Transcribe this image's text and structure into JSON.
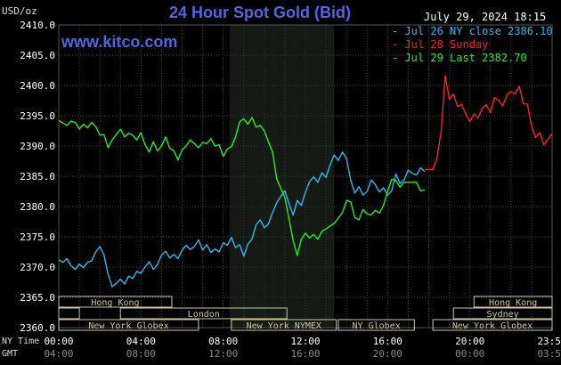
{
  "header": {
    "unit": "USD/oz",
    "title": "24 Hour Spot Gold (Bid)",
    "website": "www.kitco.com",
    "date": "July 29, 2024 18:15"
  },
  "legend": [
    {
      "label": "- Jul 26 NY close 2386.10",
      "color": "#2bb8ef"
    },
    {
      "label": "- Jul 28 Sunday",
      "color": "#ff2020"
    },
    {
      "label": "- Jul 29 Last 2382.70",
      "color": "#22ee22"
    }
  ],
  "colors": {
    "grid": "#3a3a3a",
    "session_highlight": "#151a15",
    "axis_text": "#ffffff",
    "gmt_text": "#8a8a8a",
    "session_box": "#cfc89a"
  },
  "footer": {
    "ny_label": "NY Time",
    "gmt_label": "GMT"
  },
  "chart_data": {
    "type": "line",
    "title": "24 Hour Spot Gold (Bid)",
    "ylabel": "USD/oz",
    "ylim": [
      2360.0,
      2410.0
    ],
    "yticks": [
      "2410.0",
      "2405.0",
      "2400.0",
      "2395.0",
      "2390.0",
      "2385.0",
      "2380.0",
      "2375.0",
      "2370.0",
      "2365.0",
      "2360.0"
    ],
    "xlim": [
      0,
      24
    ],
    "xticks_ny": [
      "00:00",
      "04:00",
      "08:00",
      "12:00",
      "16:00",
      "20:00",
      "23:59"
    ],
    "xticks_gmt": [
      "04:00",
      "08:00",
      "12:00",
      "16:00",
      "20:00",
      "00:00",
      "03:59"
    ],
    "highlight_hours": [
      8.3,
      13.4
    ],
    "sessions": [
      {
        "name": "Hong Kong",
        "start": 0,
        "end": 5.5
      },
      {
        "name": "Hong Kong",
        "start": 20.2,
        "end": 24
      },
      {
        "name": "London",
        "start": 0,
        "end": 1,
        "row": 1
      },
      {
        "name": "London",
        "start": 3,
        "end": 11.1
      },
      {
        "name": "Sydney",
        "start": 19.2,
        "end": 24
      },
      {
        "name": "New York Globex",
        "start": 0,
        "end": 6.8
      },
      {
        "name": "New York NYMEX",
        "start": 8.4,
        "end": 13.5
      },
      {
        "name": "NY Globex",
        "start": 13.6,
        "end": 17.3
      },
      {
        "name": "New York Globex",
        "start": 18.2,
        "end": 24
      }
    ],
    "series": [
      {
        "name": "Jul 26 NY close 2386.10",
        "color": "#2bb8ef",
        "x": [
          0.0,
          0.2,
          0.4,
          0.6,
          0.8,
          1.0,
          1.2,
          1.4,
          1.6,
          1.8,
          2.0,
          2.2,
          2.4,
          2.6,
          2.8,
          3.0,
          3.2,
          3.4,
          3.6,
          3.8,
          4.0,
          4.2,
          4.4,
          4.6,
          4.8,
          5.0,
          5.2,
          5.4,
          5.6,
          5.8,
          6.0,
          6.2,
          6.4,
          6.6,
          6.8,
          7.0,
          7.2,
          7.4,
          7.6,
          7.8,
          8.0,
          8.2,
          8.4,
          8.6,
          8.8,
          9.0,
          9.2,
          9.4,
          9.6,
          9.8,
          10.0,
          10.2,
          10.4,
          10.6,
          10.8,
          11.0,
          11.2,
          11.4,
          11.6,
          11.8,
          12.0,
          12.2,
          12.4,
          12.6,
          12.8,
          13.0,
          13.2,
          13.4,
          13.6,
          13.8,
          14.0,
          14.2,
          14.4,
          14.6,
          14.8,
          15.0,
          15.2,
          15.4,
          15.6,
          15.8,
          16.0,
          16.2,
          16.4,
          16.6,
          16.8,
          17.0,
          17.2,
          17.4,
          17.6,
          17.8
        ],
        "values": [
          2371.2,
          2370.8,
          2371.4,
          2370.2,
          2369.6,
          2370.5,
          2369.9,
          2370.8,
          2371.0,
          2372.5,
          2373.4,
          2372.0,
          2368.8,
          2366.8,
          2367.3,
          2368.0,
          2367.2,
          2368.5,
          2368.1,
          2369.3,
          2369.0,
          2370.0,
          2370.9,
          2369.6,
          2370.4,
          2372.0,
          2372.6,
          2371.5,
          2372.1,
          2371.4,
          2372.8,
          2373.6,
          2372.9,
          2373.4,
          2374.5,
          2372.8,
          2373.7,
          2372.4,
          2373.0,
          2372.5,
          2374.0,
          2373.6,
          2374.9,
          2373.2,
          2373.7,
          2371.8,
          2373.8,
          2374.6,
          2377.0,
          2377.8,
          2376.5,
          2377.1,
          2379.0,
          2380.6,
          2381.7,
          2382.6,
          2380.5,
          2378.6,
          2381.0,
          2380.2,
          2382.4,
          2384.1,
          2384.9,
          2384.0,
          2385.6,
          2384.8,
          2386.9,
          2388.5,
          2387.6,
          2389.0,
          2387.9,
          2384.4,
          2382.2,
          2383.3,
          2381.9,
          2382.5,
          2384.4,
          2383.6,
          2382.4,
          2383.1,
          2381.9,
          2382.6,
          2385.4,
          2383.8,
          2384.4,
          2386.0,
          2385.5,
          2385.2,
          2386.4,
          2385.8
        ]
      },
      {
        "name": "Jul 28 Sunday",
        "color": "#ff2020",
        "x": [
          17.8,
          18.0,
          18.2,
          18.4,
          18.6,
          18.8,
          19.0,
          19.2,
          19.4,
          19.6,
          19.8,
          20.0,
          20.2,
          20.4,
          20.6,
          20.8,
          21.0,
          21.2,
          21.4,
          21.6,
          21.8,
          22.0,
          22.2,
          22.4,
          22.6,
          22.8,
          23.0,
          23.2,
          23.4,
          23.6,
          23.8,
          24.0
        ],
        "values": [
          2386.1,
          2386.1,
          2386.1,
          2388.0,
          2392.4,
          2401.6,
          2397.7,
          2398.6,
          2396.5,
          2396.9,
          2395.3,
          2394.0,
          2395.3,
          2394.6,
          2396.2,
          2396.8,
          2395.5,
          2398.0,
          2397.5,
          2396.6,
          2398.4,
          2399.0,
          2398.6,
          2399.9,
          2397.0,
          2396.9,
          2393.3,
          2391.4,
          2392.2,
          2390.2,
          2391.1,
          2392.0
        ]
      },
      {
        "name": "Jul 29 Last 2382.70",
        "color": "#22ee22",
        "x": [
          0.0,
          0.2,
          0.4,
          0.6,
          0.8,
          1.0,
          1.2,
          1.4,
          1.6,
          1.8,
          2.0,
          2.2,
          2.4,
          2.6,
          2.8,
          3.0,
          3.2,
          3.4,
          3.6,
          3.8,
          4.0,
          4.2,
          4.4,
          4.6,
          4.8,
          5.0,
          5.2,
          5.4,
          5.6,
          5.8,
          6.0,
          6.2,
          6.4,
          6.6,
          6.8,
          7.0,
          7.2,
          7.4,
          7.6,
          7.8,
          8.0,
          8.2,
          8.4,
          8.6,
          8.8,
          9.0,
          9.2,
          9.4,
          9.6,
          9.8,
          10.0,
          10.2,
          10.4,
          10.6,
          10.8,
          11.0,
          11.2,
          11.4,
          11.6,
          11.8,
          12.0,
          12.2,
          12.4,
          12.6,
          12.8,
          13.0,
          13.2,
          13.4,
          13.6,
          13.8,
          14.0,
          14.2,
          14.4,
          14.6,
          14.8,
          15.0,
          15.2,
          15.4,
          15.6,
          15.8,
          16.0,
          16.2,
          16.4,
          16.6,
          16.8,
          17.0,
          17.2,
          17.4,
          17.6,
          17.8
        ],
        "values": [
          2394.2,
          2393.8,
          2393.4,
          2394.1,
          2393.9,
          2392.8,
          2393.6,
          2393.0,
          2393.9,
          2393.2,
          2391.8,
          2391.9,
          2389.7,
          2391.0,
          2391.9,
          2392.8,
          2391.5,
          2392.1,
          2391.8,
          2391.0,
          2392.2,
          2390.2,
          2389.0,
          2390.7,
          2389.2,
          2390.0,
          2391.5,
          2389.6,
          2389.2,
          2387.7,
          2389.4,
          2390.0,
          2391.0,
          2390.4,
          2389.7,
          2390.6,
          2390.4,
          2391.2,
          2390.0,
          2390.2,
          2388.3,
          2389.5,
          2389.9,
          2391.5,
          2394.0,
          2394.5,
          2393.6,
          2394.7,
          2393.1,
          2393.4,
          2392.5,
          2390.7,
          2389.0,
          2384.6,
          2383.0,
          2381.5,
          2378.0,
          2374.4,
          2371.9,
          2374.6,
          2375.6,
          2374.8,
          2375.4,
          2374.6,
          2375.9,
          2376.3,
          2376.8,
          2377.2,
          2378.1,
          2379.0,
          2381.0,
          2380.8,
          2378.2,
          2377.8,
          2379.5,
          2378.8,
          2378.6,
          2379.4,
          2378.9,
          2380.2,
          2382.5,
          2384.5,
          2384.3,
          2383.2,
          2384.0,
          2384.0,
          2384.0,
          2384.0,
          2382.6,
          2382.7
        ]
      }
    ]
  }
}
